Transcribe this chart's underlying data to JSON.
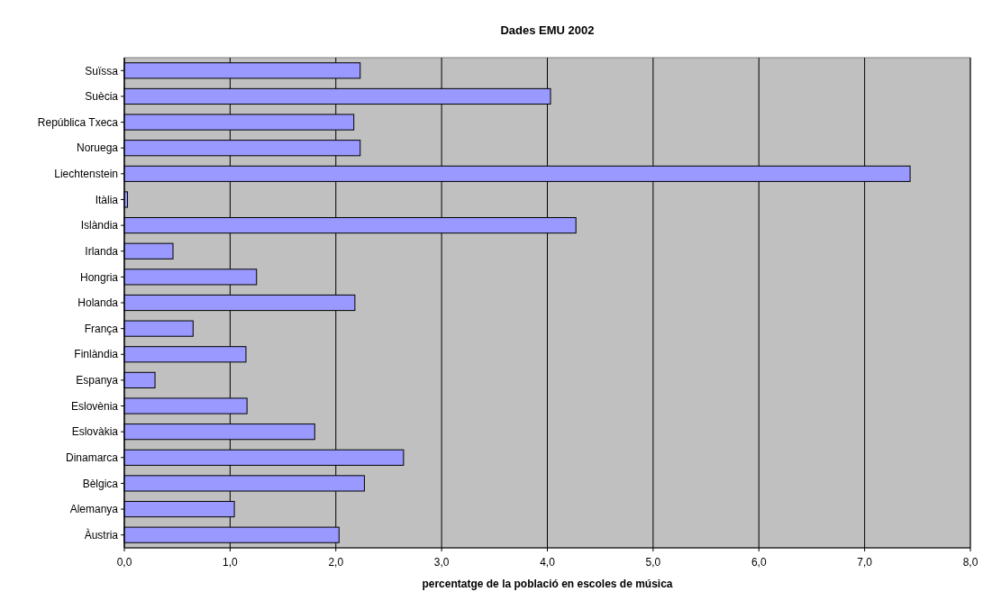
{
  "chart_data": {
    "type": "bar",
    "orientation": "horizontal",
    "title": "Dades EMU 2002",
    "xlabel": "percentatge de la població en escoles de música",
    "categories": [
      "Suïssa",
      "Suècia",
      "República Txeca",
      "Noruega",
      "Liechtenstein",
      "Itàlia",
      "Islàndia",
      "Irlanda",
      "Hongria",
      "Holanda",
      "França",
      "Finlàndia",
      "Espanya",
      "Eslovènia",
      "Eslovàkia",
      "Dinamarca",
      "Bèlgica",
      "Alemanya",
      "Àustria"
    ],
    "values": [
      2.23,
      4.03,
      2.17,
      2.23,
      7.43,
      0.03,
      4.27,
      0.46,
      1.25,
      2.18,
      0.65,
      1.15,
      0.29,
      1.16,
      1.8,
      2.64,
      2.27,
      1.04,
      2.03
    ],
    "color": "#9999ff",
    "xlim": [
      0,
      8
    ],
    "xticks": [
      {
        "value": 0,
        "label": "0,0"
      },
      {
        "value": 1,
        "label": "1,0"
      },
      {
        "value": 2,
        "label": "2,0"
      },
      {
        "value": 3,
        "label": "3,0"
      },
      {
        "value": 4,
        "label": "4,0"
      },
      {
        "value": 5,
        "label": "5,0"
      },
      {
        "value": 6,
        "label": "6,0"
      },
      {
        "value": 7,
        "label": "7,0"
      },
      {
        "value": 8,
        "label": "8,0"
      }
    ],
    "grid": "x"
  }
}
